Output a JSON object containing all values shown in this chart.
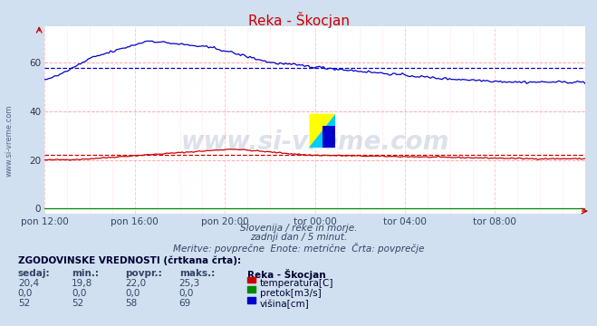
{
  "title": "Reka - Škocjan",
  "subtitle1": "Slovenija / reke in morje.",
  "subtitle2": "zadnji dan / 5 minut.",
  "subtitle3": "Meritve: povprečne  Enote: metrične  Črta: povprečje",
  "xtick_labels": [
    "pon 12:00",
    "pon 16:00",
    "pon 20:00",
    "tor 00:00",
    "tor 04:00",
    "tor 08:00"
  ],
  "yticks": [
    0,
    20,
    40,
    60
  ],
  "ylim": [
    -2,
    75
  ],
  "xlim": [
    0,
    288
  ],
  "background_color": "#d0e0f0",
  "plot_bg_color": "#ffffff",
  "grid_color_h": "#ffaaaa",
  "grid_color_v": "#ffcccc",
  "temp_color": "#cc0000",
  "flow_color": "#008800",
  "height_color": "#0000cc",
  "temp_avg_value": 22.0,
  "height_avg_value": 58,
  "watermark": "www.si-vreme.com",
  "legend_title": "Reka - Škocjan",
  "table_header": "ZGODOVINSKE VREDNOSTI (črtkana črta):",
  "col_headers": [
    "sedaj:",
    "min.:",
    "povpr.:",
    "maks.:"
  ],
  "row1": [
    "20,4",
    "19,8",
    "22,0",
    "25,3"
  ],
  "row2": [
    "0,0",
    "0,0",
    "0,0",
    "0,0"
  ],
  "row3": [
    "52",
    "52",
    "58",
    "69"
  ],
  "row_labels": [
    "temperatura[C]",
    "pretok[m3/s]",
    "višina[cm]"
  ],
  "row_colors": [
    "#cc0000",
    "#008800",
    "#0000cc"
  ]
}
